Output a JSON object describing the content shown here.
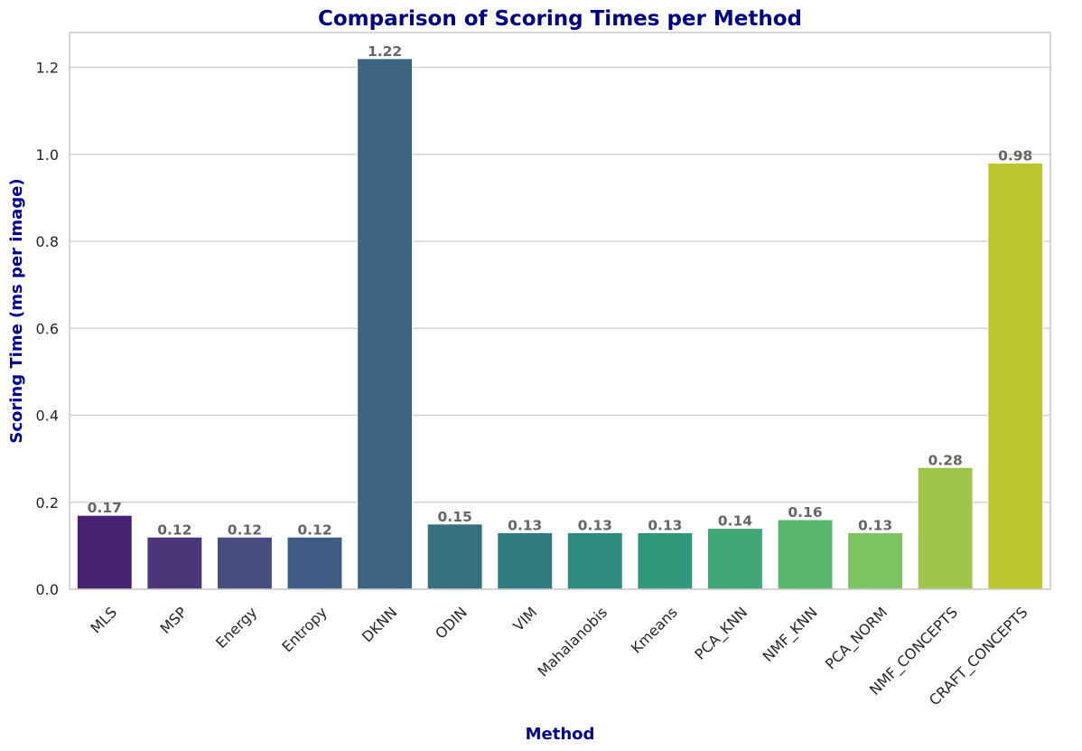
{
  "chart_data": {
    "type": "bar",
    "title": "Comparison of Scoring Times per Method",
    "xlabel": "Method",
    "ylabel": "Scoring Time (ms per image)",
    "categories": [
      "MLS",
      "MSP",
      "Energy",
      "Entropy",
      "DKNN",
      "ODIN",
      "VIM",
      "Mahalanobis",
      "Kmeans",
      "PCA_KNN",
      "NMF_KNN",
      "PCA_NORM",
      "NMF_CONCEPTS",
      "CRAFT_CONCEPTS"
    ],
    "values": [
      0.17,
      0.12,
      0.12,
      0.12,
      1.22,
      0.15,
      0.13,
      0.13,
      0.13,
      0.14,
      0.16,
      0.13,
      0.28,
      0.98
    ],
    "data_labels": [
      "0.17",
      "0.12",
      "0.12",
      "0.12",
      "1.22",
      "0.15",
      "0.13",
      "0.13",
      "0.13",
      "0.14",
      "0.16",
      "0.13",
      "0.28",
      "0.98"
    ],
    "colors": [
      "#482173",
      "#4a3777",
      "#464e7e",
      "#405c84",
      "#3d6583",
      "#34707e",
      "#2f7c7e",
      "#2d8a7c",
      "#30977a",
      "#3fa876",
      "#5ab86c",
      "#7bc461",
      "#9cc549",
      "#bcc72f"
    ],
    "yticks": [
      0.0,
      0.2,
      0.4,
      0.6,
      0.8,
      1.0,
      1.2
    ],
    "ytick_labels": [
      "0.0",
      "0.2",
      "0.4",
      "0.6",
      "0.8",
      "1.0",
      "1.2"
    ],
    "ylim": [
      0,
      1.28
    ],
    "grid": "horizontal"
  }
}
